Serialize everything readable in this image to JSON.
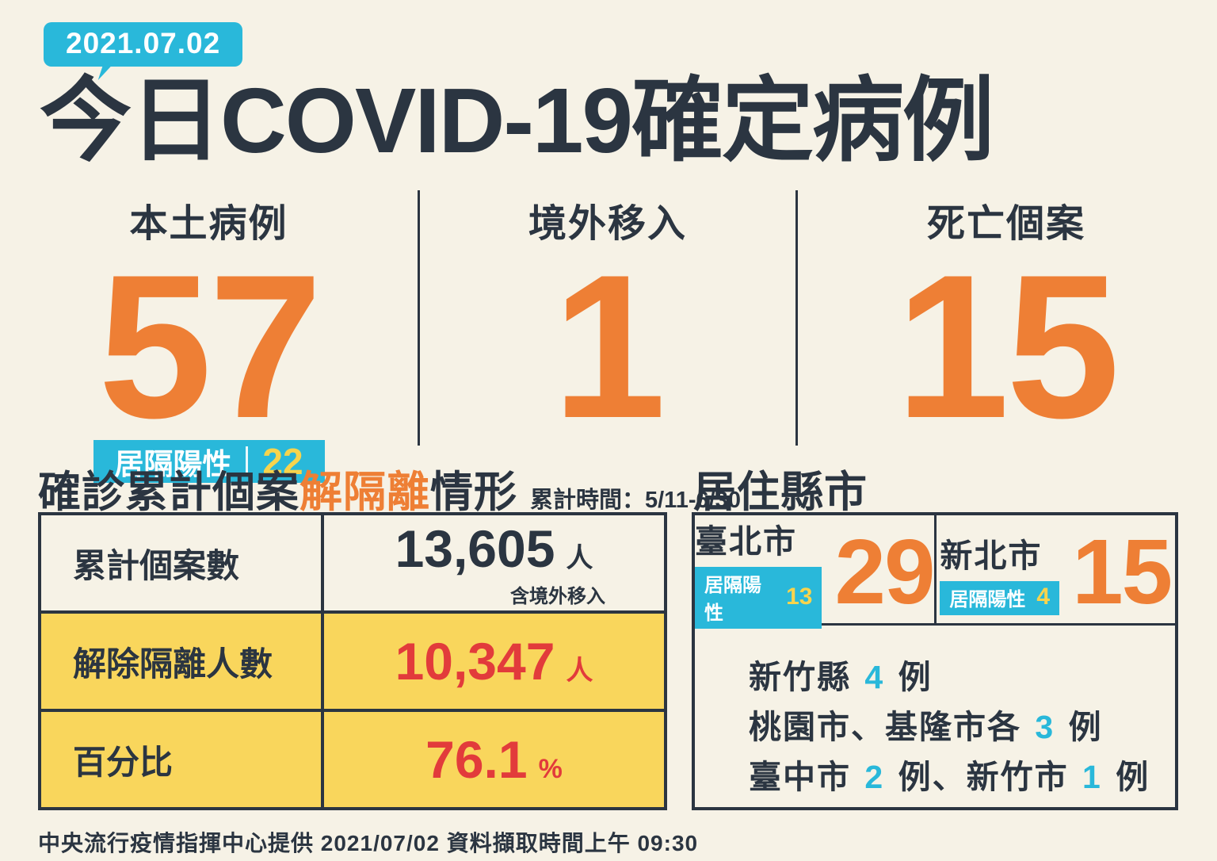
{
  "page": {
    "date_badge": "2021.07.02",
    "title": "今日COVID-19確定病例",
    "footer": "中央流行疫情指揮中心提供 2021/07/02 資料擷取時間上午 09:30"
  },
  "colors": {
    "background": "#f6f2e6",
    "navy": "#2b3541",
    "orange": "#ee7f35",
    "cyan": "#29b8da",
    "yellow": "#f9d65c",
    "badge_yellow": "#f7d44d",
    "red": "#e23b3b",
    "white": "#ffffff"
  },
  "stats": [
    {
      "label": "本土病例",
      "value": "57",
      "badge": {
        "label": "居隔陽性",
        "value": "22"
      }
    },
    {
      "label": "境外移入",
      "value": "1"
    },
    {
      "label": "死亡個案",
      "value": "15"
    }
  ],
  "isolation_section": {
    "title_part1": "確診累計個案",
    "title_part2": "解隔離",
    "title_part3": "情形",
    "subtitle": "累計時間：5/11-6/30",
    "rows": [
      {
        "label": "累計個案數",
        "value": "13,605",
        "unit": "人",
        "note": "含境外移入"
      },
      {
        "label": "解除隔離人數",
        "value": "10,347",
        "unit": "人"
      },
      {
        "label": "百分比",
        "value": "76.1",
        "unit": "%"
      }
    ]
  },
  "residence_section": {
    "title": "居住縣市",
    "cities": [
      {
        "name": "臺北市",
        "value": "29",
        "badge_label": "居隔陽性",
        "badge_value": "13"
      },
      {
        "name": "新北市",
        "value": "15",
        "badge_label": "居隔陽性",
        "badge_value": "4"
      }
    ],
    "lines": [
      {
        "segments": [
          {
            "text": "新竹縣 "
          },
          {
            "text": "4"
          },
          {
            "text": " 例"
          }
        ]
      },
      {
        "segments": [
          {
            "text": "桃園市、基隆市各 "
          },
          {
            "text": "3"
          },
          {
            "text": " 例"
          }
        ]
      },
      {
        "segments": [
          {
            "text": "臺中市 "
          },
          {
            "text": "2"
          },
          {
            "text": " 例、新竹市 "
          },
          {
            "text": "1"
          },
          {
            "text": " 例"
          }
        ]
      }
    ]
  }
}
